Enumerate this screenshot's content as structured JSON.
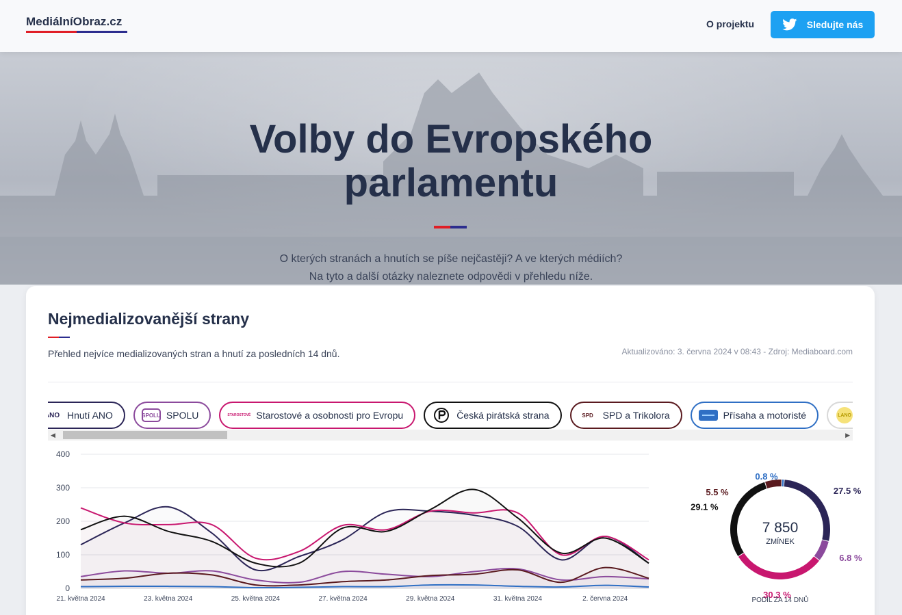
{
  "header": {
    "logo": "MediálníObraz.cz",
    "nav_about": "O projektu",
    "follow_label": "Sledujte nás"
  },
  "hero": {
    "title": "Volby do Evropského parlamentu",
    "subtitle_line1": "O kterých stranách a hnutích se píše nejčastěji? A ve kterých médiích?",
    "subtitle_line2": "Na tyto a další otázky naleznete odpovědi v přehledu níže."
  },
  "card": {
    "title": "Nejmedializovanější strany",
    "description": "Přehled nejvíce medializovaných stran a hnutí za posledních 14 dnů.",
    "updated": "Aktualizováno: 3. června 2024 v 08:43 - Zdroj: Mediaboard.com"
  },
  "chips": [
    {
      "label": "Hnutí ANO",
      "icon": "ano-logo",
      "icon_text": "ANO",
      "color": "#2b2557"
    },
    {
      "label": "SPOLU",
      "icon": "spolu-logo",
      "icon_text": "SPOLU",
      "color": "#8b4a9c"
    },
    {
      "label": "Starostové a osobnosti pro Evropu",
      "icon": "stan-logo",
      "icon_text": "STAROSTOVÉ",
      "color": "#c8176f"
    },
    {
      "label": "Česká pirátská strana",
      "icon": "pirate-logo",
      "icon_text": "",
      "color": "#111111"
    },
    {
      "label": "SPD a Trikolora",
      "icon": "spd-logo",
      "icon_text": "SPD",
      "color": "#5a1a1f"
    },
    {
      "label": "Přísaha a motoristé",
      "icon": "prisaha-logo",
      "icon_text": "",
      "color": "#2f6fc4"
    },
    {
      "label": "LA",
      "icon": "lano-logo",
      "icon_text": "LANO",
      "color": "#d8d8d8"
    }
  ],
  "chart_data": [
    {
      "type": "line",
      "x": [
        "21. května 2024",
        "22. května 2024",
        "23. května 2024",
        "24. května 2024",
        "25. května 2024",
        "26. května 2024",
        "27. května 2024",
        "28. května 2024",
        "29. května 2024",
        "30. května 2024",
        "31. května 2024",
        "1. června 2024",
        "2. června 2024",
        "3. června 2024"
      ],
      "x_tick_labels": [
        "21. května 2024",
        "23. května 2024",
        "25. května 2024",
        "27. května 2024",
        "29. května 2024",
        "31. května 2024",
        "2. června 2024"
      ],
      "ylim": [
        0,
        400
      ],
      "y_ticks": [
        "0",
        "100",
        "200",
        "300",
        "400"
      ],
      "grid": true,
      "series": [
        {
          "name": "Hnutí ANO",
          "color": "#2b2557",
          "values": [
            130,
            195,
            243,
            165,
            55,
            95,
            145,
            228,
            230,
            218,
            185,
            85,
            155,
            75
          ]
        },
        {
          "name": "SPOLU",
          "color": "#8b4a9c",
          "values": [
            35,
            52,
            45,
            52,
            25,
            18,
            50,
            42,
            35,
            50,
            58,
            25,
            35,
            28
          ]
        },
        {
          "name": "Starostové a osobnosti pro Evropu",
          "color": "#c8176f",
          "values": [
            240,
            195,
            190,
            190,
            90,
            110,
            188,
            175,
            230,
            225,
            225,
            100,
            155,
            85
          ]
        },
        {
          "name": "Česká pirátská strana",
          "color": "#111111",
          "values": [
            175,
            215,
            170,
            140,
            75,
            75,
            180,
            170,
            235,
            295,
            210,
            105,
            150,
            75
          ]
        },
        {
          "name": "SPD a Trikolora",
          "color": "#5a1a1f",
          "values": [
            25,
            30,
            45,
            40,
            10,
            10,
            20,
            25,
            38,
            42,
            55,
            18,
            62,
            30
          ]
        },
        {
          "name": "Přísaha a motoristé",
          "color": "#2f6fc4",
          "values": [
            5,
            6,
            6,
            5,
            2,
            3,
            5,
            5,
            10,
            10,
            6,
            4,
            9,
            4
          ]
        }
      ]
    },
    {
      "type": "pie",
      "center_value": "7 850",
      "center_label": "ZMÍNEK",
      "caption": "PODÍL ZA 14 DNŮ",
      "slices": [
        {
          "name": "Hnutí ANO",
          "value": 27.5,
          "label": "27.5 %",
          "color": "#2b2557"
        },
        {
          "name": "SPOLU",
          "value": 6.8,
          "label": "6.8 %",
          "color": "#8b4a9c"
        },
        {
          "name": "Starostové a osobnosti pro Evropu",
          "value": 30.3,
          "label": "30.3 %",
          "color": "#c8176f"
        },
        {
          "name": "Česká pirátská strana",
          "value": 29.1,
          "label": "29.1 %",
          "color": "#111111"
        },
        {
          "name": "SPD a Trikolora",
          "value": 5.5,
          "label": "5.5 %",
          "color": "#5a1a1f"
        },
        {
          "name": "Přísaha a motoristé",
          "value": 0.8,
          "label": "0.8 %",
          "color": "#2f6fc4"
        }
      ]
    }
  ]
}
